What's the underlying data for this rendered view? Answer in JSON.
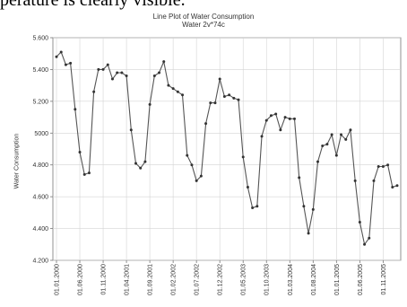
{
  "doc_fragment": "perature is clearly visible.",
  "chart_data": {
    "type": "line",
    "title": "Line Plot of Water Consumption",
    "subtitle": "Water 2v*74c",
    "xlabel": "",
    "ylabel": "Water Consumption",
    "ylim": [
      4200,
      5600
    ],
    "yticks": [
      4200,
      4400,
      4600,
      4800,
      5000,
      5200,
      5400,
      5600
    ],
    "ytick_labels": [
      "4.200",
      "4.400",
      "4.600",
      "4.800",
      "5000",
      "5.200",
      "5.400",
      "5.600"
    ],
    "xtick_labels": [
      "01.01.2000",
      "01.06.2000",
      "01.11.2000",
      "01.04.2001",
      "01.09.2001",
      "01.02.2002",
      "01.07.2002",
      "01.12.2002",
      "01.05.2003",
      "01.10.2003",
      "01.03.2004",
      "01.08.2004",
      "01.01.2005",
      "01.06.2005",
      "01.11.2005"
    ],
    "xtick_index": [
      0,
      5,
      10,
      15,
      20,
      25,
      30,
      35,
      40,
      45,
      50,
      55,
      60,
      65,
      70
    ],
    "grid": true,
    "marker": "dot",
    "series": [
      {
        "values": [
          5480,
          5510,
          5430,
          5440,
          5150,
          4880,
          4740,
          4750,
          5260,
          5400,
          5400,
          5430,
          5340,
          5380,
          5380,
          5360,
          5020,
          4810,
          4780,
          4820,
          5180,
          5360,
          5380,
          5450,
          5300,
          5280,
          5260,
          5240,
          4860,
          4800,
          4700,
          4730,
          5060,
          5190,
          5190,
          5340,
          5230,
          5240,
          5220,
          5210,
          4850,
          4660,
          4530,
          4540,
          4980,
          5080,
          5110,
          5120,
          5020,
          5100,
          5090,
          5090,
          4720,
          4540,
          4370,
          4520,
          4820,
          4920,
          4930,
          4990,
          4860,
          4990,
          4960,
          5020,
          4700,
          4440,
          4300,
          4340,
          4700,
          4790,
          4790,
          4800,
          4660,
          4670
        ]
      }
    ]
  }
}
